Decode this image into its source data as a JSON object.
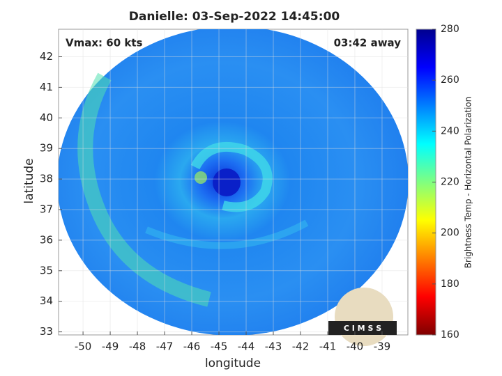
{
  "chart_data": {
    "type": "image",
    "title": "Danielle: 03-Sep-2022 14:45:00",
    "x_label": "longitude",
    "y_label": "latitude",
    "annotations": [
      "Vmax: 60 kts",
      "03:42 away"
    ],
    "logo_text": "C I M S S",
    "xlim": [
      -50.9,
      -38.05
    ],
    "ylim": [
      32.9,
      42.9
    ],
    "xticks": [
      -50,
      -49,
      -48,
      -47,
      -46,
      -45,
      -44,
      -43,
      -42,
      -41,
      -40,
      -39
    ],
    "yticks": [
      33,
      34,
      35,
      36,
      37,
      38,
      39,
      40,
      41,
      42
    ],
    "grid": true,
    "colorbar": {
      "label": "Brightness Temp - Horizontal Polarization",
      "lim": [
        160,
        280
      ],
      "ticks": [
        160,
        180,
        200,
        220,
        240,
        260,
        280
      ]
    }
  }
}
